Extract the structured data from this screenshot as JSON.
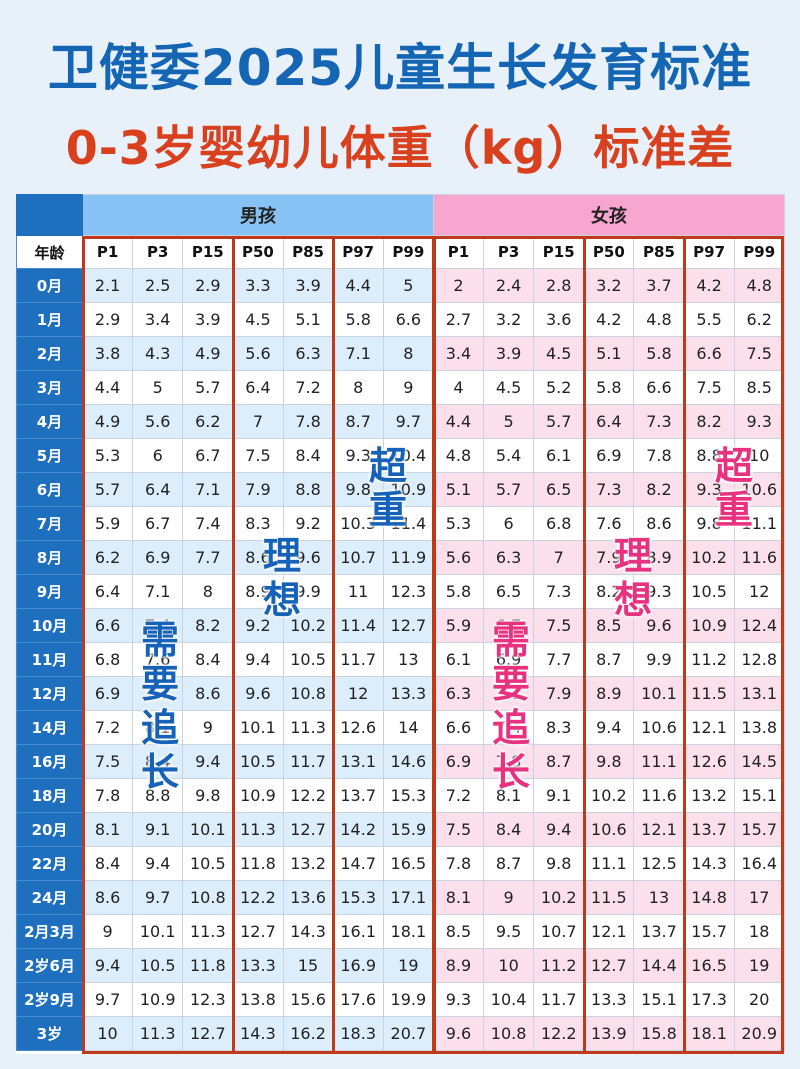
{
  "title": "卫健委2025儿童生长发育标准",
  "subtitle": "0-3岁婴幼儿体重（kg）标准差",
  "groups": {
    "boy": "男孩",
    "girl": "女孩"
  },
  "age_header": "年龄",
  "percentiles": [
    "P1",
    "P3",
    "P15",
    "P50",
    "P85",
    "P97",
    "P99"
  ],
  "rows": [
    {
      "age": "0月",
      "boy": [
        "2.1",
        "2.5",
        "2.9",
        "3.3",
        "3.9",
        "4.4",
        "5"
      ],
      "girl": [
        "2",
        "2.4",
        "2.8",
        "3.2",
        "3.7",
        "4.2",
        "4.8"
      ]
    },
    {
      "age": "1月",
      "boy": [
        "2.9",
        "3.4",
        "3.9",
        "4.5",
        "5.1",
        "5.8",
        "6.6"
      ],
      "girl": [
        "2.7",
        "3.2",
        "3.6",
        "4.2",
        "4.8",
        "5.5",
        "6.2"
      ]
    },
    {
      "age": "2月",
      "boy": [
        "3.8",
        "4.3",
        "4.9",
        "5.6",
        "6.3",
        "7.1",
        "8"
      ],
      "girl": [
        "3.4",
        "3.9",
        "4.5",
        "5.1",
        "5.8",
        "6.6",
        "7.5"
      ]
    },
    {
      "age": "3月",
      "boy": [
        "4.4",
        "5",
        "5.7",
        "6.4",
        "7.2",
        "8",
        "9"
      ],
      "girl": [
        "4",
        "4.5",
        "5.2",
        "5.8",
        "6.6",
        "7.5",
        "8.5"
      ]
    },
    {
      "age": "4月",
      "boy": [
        "4.9",
        "5.6",
        "6.2",
        "7",
        "7.8",
        "8.7",
        "9.7"
      ],
      "girl": [
        "4.4",
        "5",
        "5.7",
        "6.4",
        "7.3",
        "8.2",
        "9.3"
      ]
    },
    {
      "age": "5月",
      "boy": [
        "5.3",
        "6",
        "6.7",
        "7.5",
        "8.4",
        "9.3",
        "10.4"
      ],
      "girl": [
        "4.8",
        "5.4",
        "6.1",
        "6.9",
        "7.8",
        "8.8",
        "10"
      ]
    },
    {
      "age": "6月",
      "boy": [
        "5.7",
        "6.4",
        "7.1",
        "7.9",
        "8.8",
        "9.8",
        "10.9"
      ],
      "girl": [
        "5.1",
        "5.7",
        "6.5",
        "7.3",
        "8.2",
        "9.3",
        "10.6"
      ]
    },
    {
      "age": "7月",
      "boy": [
        "5.9",
        "6.7",
        "7.4",
        "8.3",
        "9.2",
        "10.3",
        "11.4"
      ],
      "girl": [
        "5.3",
        "6",
        "6.8",
        "7.6",
        "8.6",
        "9.8",
        "11.1"
      ]
    },
    {
      "age": "8月",
      "boy": [
        "6.2",
        "6.9",
        "7.7",
        "8.6",
        "9.6",
        "10.7",
        "11.9"
      ],
      "girl": [
        "5.6",
        "6.3",
        "7",
        "7.9",
        "8.9",
        "10.2",
        "11.6"
      ]
    },
    {
      "age": "9月",
      "boy": [
        "6.4",
        "7.1",
        "8",
        "8.9",
        "9.9",
        "11",
        "12.3"
      ],
      "girl": [
        "5.8",
        "6.5",
        "7.3",
        "8.2",
        "9.3",
        "10.5",
        "12"
      ]
    },
    {
      "age": "10月",
      "boy": [
        "6.6",
        "7.4",
        "8.2",
        "9.2",
        "10.2",
        "11.4",
        "12.7"
      ],
      "girl": [
        "5.9",
        "6.7",
        "7.5",
        "8.5",
        "9.6",
        "10.9",
        "12.4"
      ]
    },
    {
      "age": "11月",
      "boy": [
        "6.8",
        "7.6",
        "8.4",
        "9.4",
        "10.5",
        "11.7",
        "13"
      ],
      "girl": [
        "6.1",
        "6.9",
        "7.7",
        "8.7",
        "9.9",
        "11.2",
        "12.8"
      ]
    },
    {
      "age": "12月",
      "boy": [
        "6.9",
        "7.7",
        "8.6",
        "9.6",
        "10.8",
        "12",
        "13.3"
      ],
      "girl": [
        "6.3",
        "7.1",
        "7.9",
        "8.9",
        "10.1",
        "11.5",
        "13.1"
      ]
    },
    {
      "age": "14月",
      "boy": [
        "7.2",
        "8.1",
        "9",
        "10.1",
        "11.3",
        "12.6",
        "14"
      ],
      "girl": [
        "6.6",
        "7.4",
        "8.3",
        "9.4",
        "10.6",
        "12.1",
        "13.8"
      ]
    },
    {
      "age": "16月",
      "boy": [
        "7.5",
        "8.4",
        "9.4",
        "10.5",
        "11.7",
        "13.1",
        "14.6"
      ],
      "girl": [
        "6.9",
        "7.8",
        "8.7",
        "9.8",
        "11.1",
        "12.6",
        "14.5"
      ]
    },
    {
      "age": "18月",
      "boy": [
        "7.8",
        "8.8",
        "9.8",
        "10.9",
        "12.2",
        "13.7",
        "15.3"
      ],
      "girl": [
        "7.2",
        "8.1",
        "9.1",
        "10.2",
        "11.6",
        "13.2",
        "15.1"
      ]
    },
    {
      "age": "20月",
      "boy": [
        "8.1",
        "9.1",
        "10.1",
        "11.3",
        "12.7",
        "14.2",
        "15.9"
      ],
      "girl": [
        "7.5",
        "8.4",
        "9.4",
        "10.6",
        "12.1",
        "13.7",
        "15.7"
      ]
    },
    {
      "age": "22月",
      "boy": [
        "8.4",
        "9.4",
        "10.5",
        "11.8",
        "13.2",
        "14.7",
        "16.5"
      ],
      "girl": [
        "7.8",
        "8.7",
        "9.8",
        "11.1",
        "12.5",
        "14.3",
        "16.4"
      ]
    },
    {
      "age": "24月",
      "boy": [
        "8.6",
        "9.7",
        "10.8",
        "12.2",
        "13.6",
        "15.3",
        "17.1"
      ],
      "girl": [
        "8.1",
        "9",
        "10.2",
        "11.5",
        "13",
        "14.8",
        "17"
      ]
    },
    {
      "age": "2月3月",
      "boy": [
        "9",
        "10.1",
        "11.3",
        "12.7",
        "14.3",
        "16.1",
        "18.1"
      ],
      "girl": [
        "8.5",
        "9.5",
        "10.7",
        "12.1",
        "13.7",
        "15.7",
        "18"
      ]
    },
    {
      "age": "2岁6月",
      "boy": [
        "9.4",
        "10.5",
        "11.8",
        "13.3",
        "15",
        "16.9",
        "19"
      ],
      "girl": [
        "8.9",
        "10",
        "11.2",
        "12.7",
        "14.4",
        "16.5",
        "19"
      ]
    },
    {
      "age": "2岁9月",
      "boy": [
        "9.7",
        "10.9",
        "12.3",
        "13.8",
        "15.6",
        "17.6",
        "19.9"
      ],
      "girl": [
        "9.3",
        "10.4",
        "11.7",
        "13.3",
        "15.1",
        "17.3",
        "20"
      ]
    },
    {
      "age": "3岁",
      "boy": [
        "10",
        "11.3",
        "12.7",
        "14.3",
        "16.2",
        "18.3",
        "20.7"
      ],
      "girl": [
        "9.6",
        "10.8",
        "12.2",
        "13.9",
        "15.8",
        "18.1",
        "20.9"
      ]
    }
  ],
  "labels": {
    "catch_up": [
      "需",
      "要",
      "追",
      "长"
    ],
    "ideal": [
      "理",
      "想"
    ],
    "overweight": [
      "超",
      "重"
    ]
  },
  "colors": {
    "title": "#1565b5",
    "subtitle": "#d9411e",
    "boy_header": "#86c3f4",
    "girl_header": "#f7a7cf",
    "frame": "#c0391b",
    "blue_label": "#1662b8",
    "pink_label": "#e8317f"
  }
}
